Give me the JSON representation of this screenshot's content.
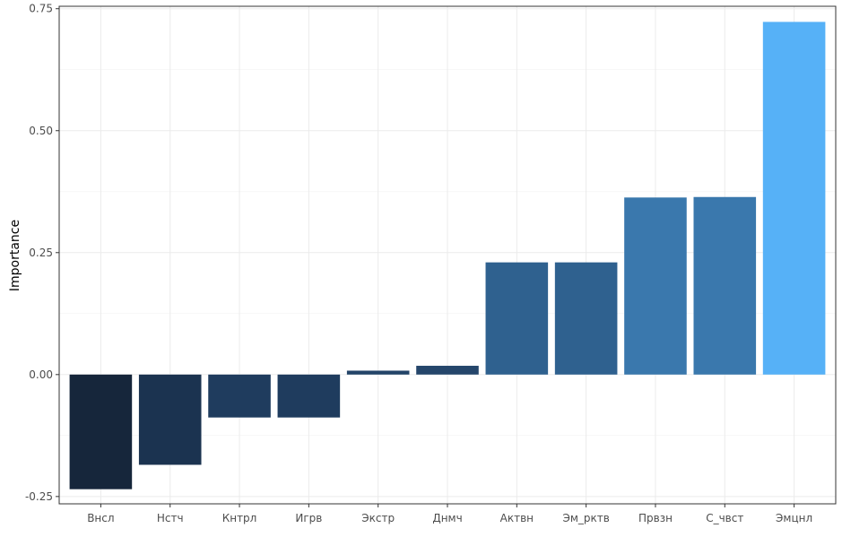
{
  "chart_data": {
    "type": "bar",
    "title": "",
    "xlabel": "",
    "ylabel": "Importance",
    "categories": [
      "Внсл",
      "Нстч",
      "Кнтрл",
      "Игрв",
      "Экстр",
      "Днмч",
      "Актвн",
      "Эм_рктв",
      "Првзн",
      "С_чвст",
      "Эмцнл"
    ],
    "values": [
      -0.235,
      -0.185,
      -0.088,
      -0.088,
      0.008,
      0.018,
      0.23,
      0.23,
      0.363,
      0.364,
      0.723
    ],
    "colors": [
      "#16263b",
      "#1b3350",
      "#1f3c5e",
      "#1f3c5e",
      "#234468",
      "#25466b",
      "#2f618f",
      "#2f618f",
      "#3a78ad",
      "#3a78ad",
      "#56b1f7"
    ],
    "ylim": [
      -0.265,
      0.755
    ],
    "yticks": [
      -0.25,
      0.0,
      0.25,
      0.5,
      0.75
    ],
    "ytick_labels": [
      "-0.25",
      "0.00",
      "0.25",
      "0.50",
      "0.75"
    ],
    "grid": true,
    "legend": "none"
  }
}
